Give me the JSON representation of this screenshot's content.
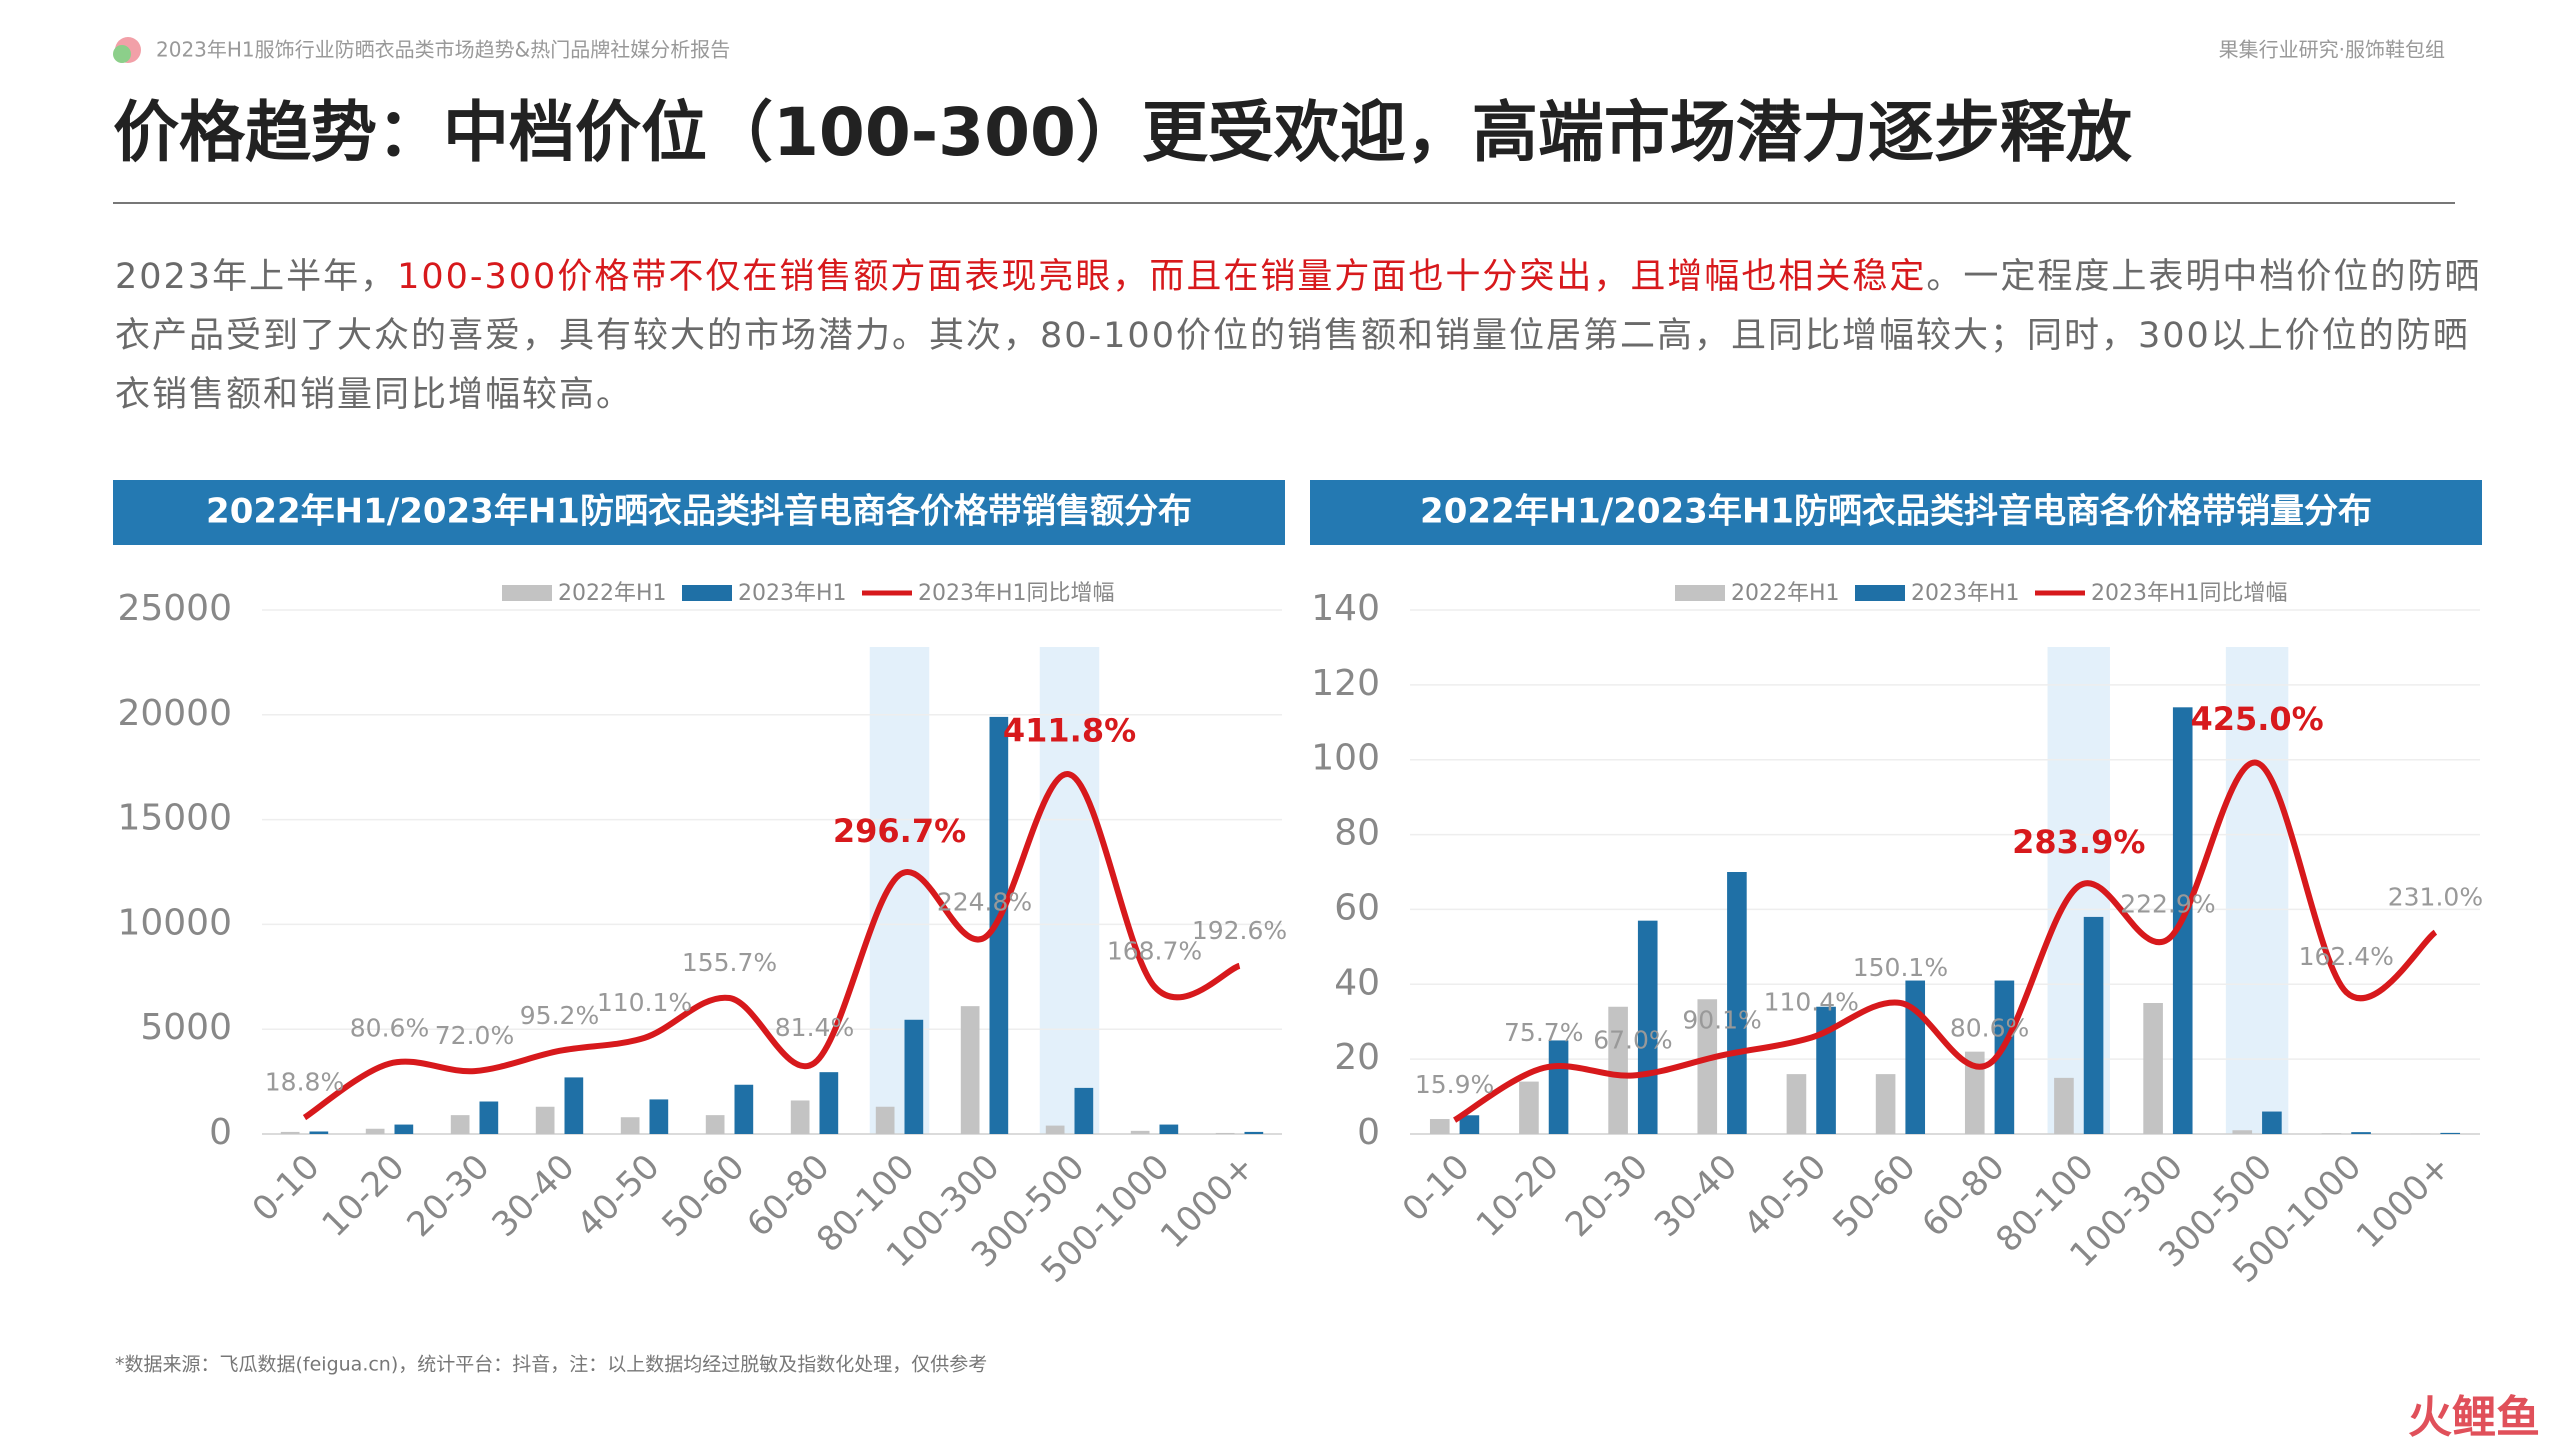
{
  "header": {
    "report": "2023年H1服饰行业防晒衣品类市场趋势&热门品牌社媒分析报告",
    "org": "果集行业研究·服饰鞋包组"
  },
  "title": "价格趋势：中档价位（100-300）更受欢迎，高端市场潜力逐步释放",
  "paragraph": [
    "2023年上半年，",
    "100-300价格带不仅在销售额方面表现亮眼，而且在销量方面也十分突出，且增幅也相关稳定",
    "。一定程度上表明中档价位的防晒衣产品受到了大众的喜爱，具有较大的市场潜力。其次，80-100价位的销售额和销量位居第二高，且同比增幅较大；同时，300以上价位的防晒衣销售额和销量同比增幅较高。"
  ],
  "footnote": "*数据来源：飞瓜数据(feigua.cn)，统计平台：抖音，注：以上数据均经过脱敏及指数化处理，仅供参考",
  "watermark": "火鲤鱼",
  "chart_data": [
    {
      "type": "bar-line",
      "title": "2022年H1/2023年H1防晒衣品类抖音电商各价格带销售额分布",
      "categories": [
        "0-10",
        "10-20",
        "20-30",
        "30-40",
        "40-50",
        "50-60",
        "60-80",
        "80-100",
        "100-300",
        "300-500",
        "500-1000",
        "1000+"
      ],
      "series": [
        {
          "name": "2022年H1",
          "color": "#c3c3c3",
          "values": [
            100,
            250,
            900,
            1300,
            800,
            900,
            1600,
            1300,
            6100,
            400,
            150,
            50
          ]
        },
        {
          "name": "2023年H1",
          "color": "#1f70a6",
          "values": [
            120,
            450,
            1550,
            2700,
            1650,
            2350,
            2950,
            5450,
            19900,
            2200,
            450,
            100
          ]
        },
        {
          "name": "2023年H1同比增幅",
          "color": "#d7191c",
          "axis": "y2",
          "values": [
            18.8,
            80.6,
            72.0,
            95.2,
            110.1,
            155.7,
            81.4,
            296.7,
            224.8,
            411.8,
            168.7,
            192.6
          ],
          "value_labels": [
            "18.8%",
            "80.6%",
            "72.0%",
            "95.2%",
            "110.1%",
            "155.7%",
            "81.4%",
            "296.7%",
            "224.8%",
            "411.8%",
            "168.7%",
            "192.6%"
          ]
        }
      ],
      "ylim": [
        0,
        25000
      ],
      "yticks": [
        0,
        5000,
        10000,
        15000,
        20000,
        25000
      ],
      "y2lim": [
        0,
        600
      ],
      "grid": true,
      "highlight": [
        "80-100",
        "300-500"
      ]
    },
    {
      "type": "bar-line",
      "title": "2022年H1/2023年H1防晒衣品类抖音电商各价格带销量分布",
      "categories": [
        "0-10",
        "10-20",
        "20-30",
        "30-40",
        "40-50",
        "50-60",
        "60-80",
        "80-100",
        "100-300",
        "300-500",
        "500-1000",
        "1000+"
      ],
      "series": [
        {
          "name": "2022年H1",
          "color": "#c3c3c3",
          "values": [
            4,
            14,
            34,
            36,
            16,
            16,
            22,
            15,
            35,
            1,
            0.2,
            0.1
          ]
        },
        {
          "name": "2023年H1",
          "color": "#1f70a6",
          "values": [
            5,
            25,
            57,
            70,
            34,
            41,
            41,
            58,
            114,
            6,
            0.5,
            0.3
          ]
        },
        {
          "name": "2023年H1同比增幅",
          "color": "#d7191c",
          "axis": "y2",
          "values": [
            15.9,
            75.7,
            67.0,
            90.1,
            110.4,
            150.1,
            80.6,
            283.9,
            222.9,
            425.0,
            162.4,
            231.0
          ],
          "value_labels": [
            "15.9%",
            "75.7%",
            "67.0%",
            "90.1%",
            "110.4%",
            "150.1%",
            "80.6%",
            "283.9%",
            "222.9%",
            "425.0%",
            "162.4%",
            "231.0%"
          ]
        }
      ],
      "ylim": [
        0,
        140
      ],
      "yticks": [
        0,
        20,
        40,
        60,
        80,
        100,
        120,
        140
      ],
      "y2lim": [
        0,
        600
      ],
      "grid": true,
      "highlight": [
        "80-100",
        "300-500"
      ]
    }
  ]
}
